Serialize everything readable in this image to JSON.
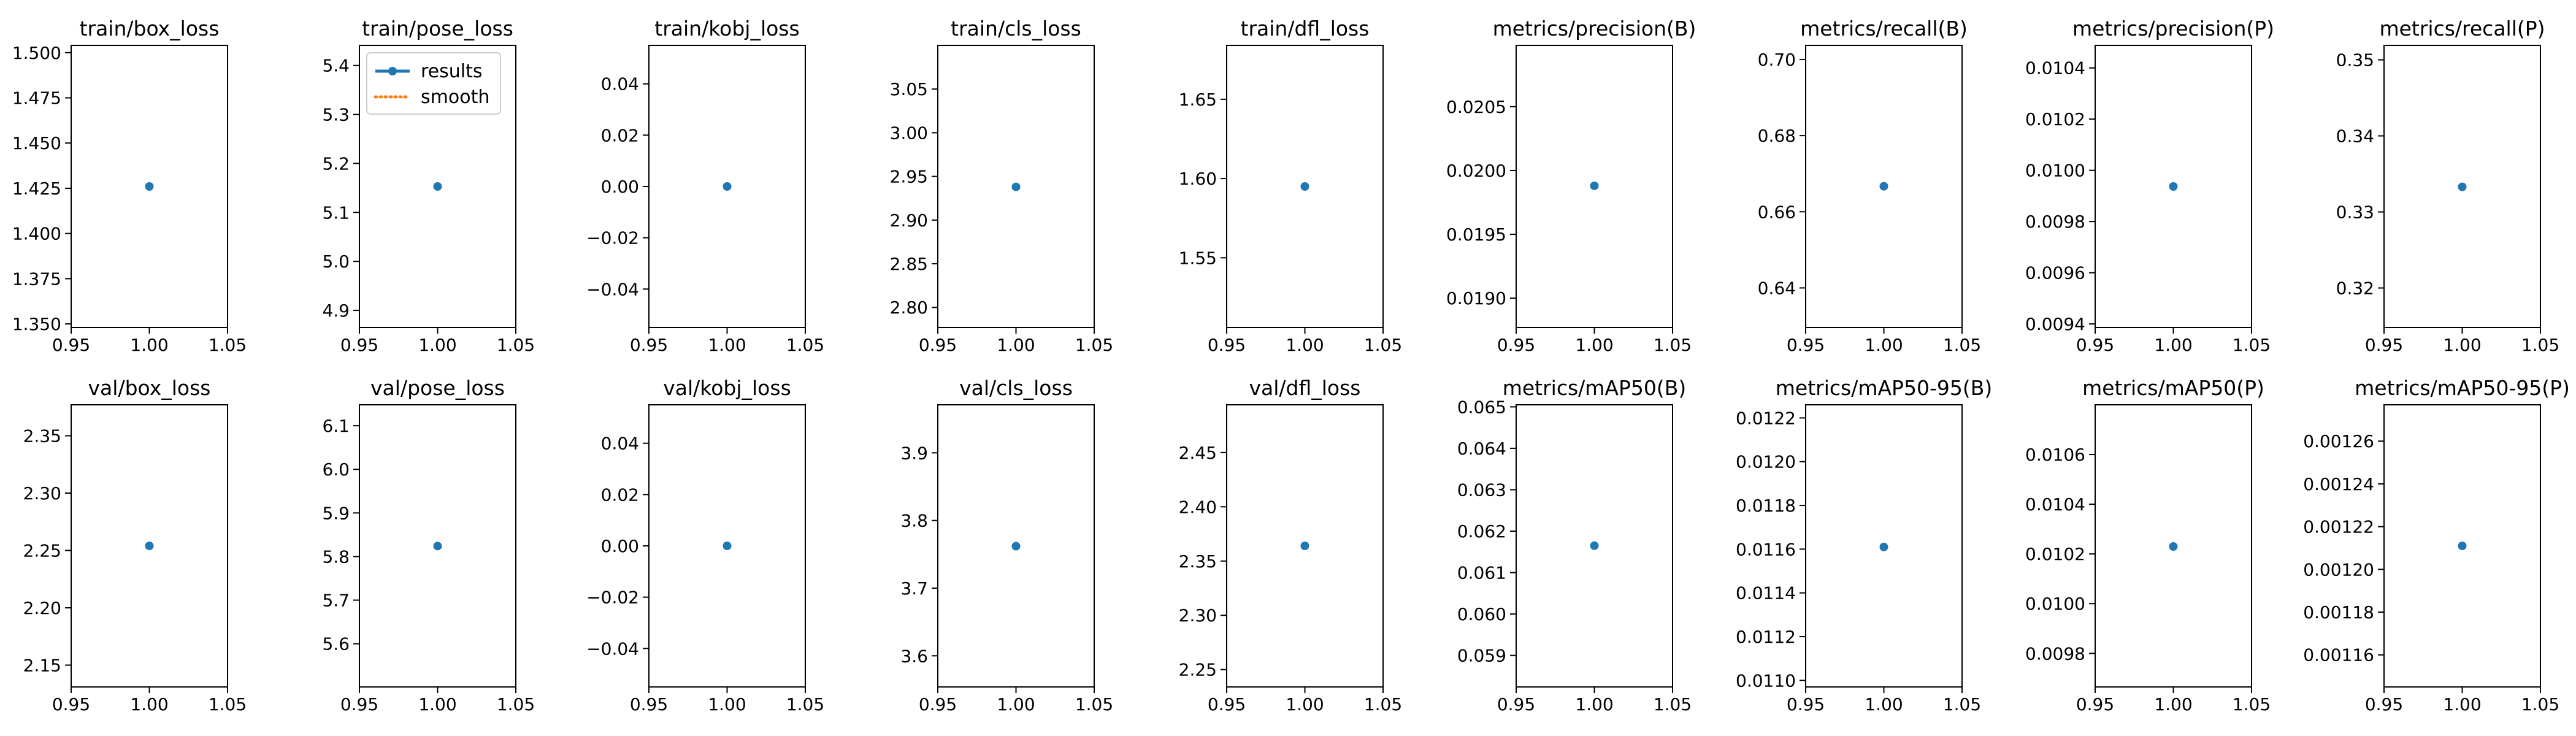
{
  "figure": {
    "legend": [
      "results",
      "smooth"
    ],
    "colors": {
      "results": "#1f77b4",
      "smooth": "#ff7f0e",
      "axes": "#000000",
      "background": "#ffffff"
    }
  },
  "chart_data": [
    {
      "type": "scatter",
      "title": "train/box_loss",
      "x": [
        1.0
      ],
      "y": [
        1.426
      ],
      "xlim": [
        0.95,
        1.05
      ],
      "ylim": [
        1.348,
        1.504
      ],
      "xticks": [
        "0.95",
        "1.00",
        "1.05"
      ],
      "yticks": [
        "1.350",
        "1.375",
        "1.400",
        "1.425",
        "1.450",
        "1.475",
        "1.500"
      ],
      "ytick_values": [
        1.35,
        1.375,
        1.4,
        1.425,
        1.45,
        1.475,
        1.5
      ]
    },
    {
      "type": "scatter",
      "title": "train/pose_loss",
      "x": [
        1.0
      ],
      "y": [
        5.153
      ],
      "xlim": [
        0.95,
        1.05
      ],
      "ylim": [
        4.865,
        5.441
      ],
      "xticks": [
        "0.95",
        "1.00",
        "1.05"
      ],
      "yticks": [
        "4.9",
        "5.0",
        "5.1",
        "5.2",
        "5.3",
        "5.4"
      ],
      "ytick_values": [
        4.9,
        5.0,
        5.1,
        5.2,
        5.3,
        5.4
      ],
      "legend": {
        "position": "upper-left",
        "entries": [
          "results",
          "smooth"
        ]
      }
    },
    {
      "type": "scatter",
      "title": "train/kobj_loss",
      "x": [
        1.0
      ],
      "y": [
        0.0
      ],
      "xlim": [
        0.95,
        1.05
      ],
      "ylim": [
        -0.055,
        0.055
      ],
      "xticks": [
        "0.95",
        "1.00",
        "1.05"
      ],
      "yticks": [
        "−0.04",
        "−0.02",
        "0.00",
        "0.02",
        "0.04"
      ],
      "ytick_values": [
        -0.04,
        -0.02,
        0.0,
        0.02,
        0.04
      ]
    },
    {
      "type": "scatter",
      "title": "train/cls_loss",
      "x": [
        1.0
      ],
      "y": [
        2.938
      ],
      "xlim": [
        0.95,
        1.05
      ],
      "ylim": [
        2.777,
        3.1
      ],
      "xticks": [
        "0.95",
        "1.00",
        "1.05"
      ],
      "yticks": [
        "2.80",
        "2.85",
        "2.90",
        "2.95",
        "3.00",
        "3.05"
      ],
      "ytick_values": [
        2.8,
        2.85,
        2.9,
        2.95,
        3.0,
        3.05
      ]
    },
    {
      "type": "scatter",
      "title": "train/dfl_loss",
      "x": [
        1.0
      ],
      "y": [
        1.595
      ],
      "xlim": [
        0.95,
        1.05
      ],
      "ylim": [
        1.506,
        1.684
      ],
      "xticks": [
        "0.95",
        "1.00",
        "1.05"
      ],
      "yticks": [
        "1.55",
        "1.60",
        "1.65"
      ],
      "ytick_values": [
        1.55,
        1.6,
        1.65
      ]
    },
    {
      "type": "scatter",
      "title": "metrics/precision(B)",
      "x": [
        1.0
      ],
      "y": [
        0.01988
      ],
      "xlim": [
        0.95,
        1.05
      ],
      "ylim": [
        0.01877,
        0.02098
      ],
      "xticks": [
        "0.95",
        "1.00",
        "1.05"
      ],
      "yticks": [
        "0.0190",
        "0.0195",
        "0.0200",
        "0.0205"
      ],
      "ytick_values": [
        0.019,
        0.0195,
        0.02,
        0.0205
      ]
    },
    {
      "type": "scatter",
      "title": "metrics/recall(B)",
      "x": [
        1.0
      ],
      "y": [
        0.6667
      ],
      "xlim": [
        0.95,
        1.05
      ],
      "ylim": [
        0.6296,
        0.7037
      ],
      "xticks": [
        "0.95",
        "1.00",
        "1.05"
      ],
      "yticks": [
        "0.64",
        "0.66",
        "0.68",
        "0.70"
      ],
      "ytick_values": [
        0.64,
        0.66,
        0.68,
        0.7
      ]
    },
    {
      "type": "scatter",
      "title": "metrics/precision(P)",
      "x": [
        1.0
      ],
      "y": [
        0.009937
      ],
      "xlim": [
        0.95,
        1.05
      ],
      "ylim": [
        0.009386,
        0.010488
      ],
      "xticks": [
        "0.95",
        "1.00",
        "1.05"
      ],
      "yticks": [
        "0.0094",
        "0.0096",
        "0.0098",
        "0.0100",
        "0.0102",
        "0.0104"
      ],
      "ytick_values": [
        0.0094,
        0.0096,
        0.0098,
        0.01,
        0.0102,
        0.0104
      ]
    },
    {
      "type": "scatter",
      "title": "metrics/recall(P)",
      "x": [
        1.0
      ],
      "y": [
        0.3333
      ],
      "xlim": [
        0.95,
        1.05
      ],
      "ylim": [
        0.3148,
        0.3519
      ],
      "xticks": [
        "0.95",
        "1.00",
        "1.05"
      ],
      "yticks": [
        "0.32",
        "0.33",
        "0.34",
        "0.35"
      ],
      "ytick_values": [
        0.32,
        0.33,
        0.34,
        0.35
      ]
    },
    {
      "type": "scatter",
      "title": "val/box_loss",
      "x": [
        1.0
      ],
      "y": [
        2.254
      ],
      "xlim": [
        0.95,
        1.05
      ],
      "ylim": [
        2.131,
        2.377
      ],
      "xticks": [
        "0.95",
        "1.00",
        "1.05"
      ],
      "yticks": [
        "2.15",
        "2.20",
        "2.25",
        "2.30",
        "2.35"
      ],
      "ytick_values": [
        2.15,
        2.2,
        2.25,
        2.3,
        2.35
      ]
    },
    {
      "type": "scatter",
      "title": "val/pose_loss",
      "x": [
        1.0
      ],
      "y": [
        5.824
      ],
      "xlim": [
        0.95,
        1.05
      ],
      "ylim": [
        5.501,
        6.148
      ],
      "xticks": [
        "0.95",
        "1.00",
        "1.05"
      ],
      "yticks": [
        "5.6",
        "5.7",
        "5.8",
        "5.9",
        "6.0",
        "6.1"
      ],
      "ytick_values": [
        5.6,
        5.7,
        5.8,
        5.9,
        6.0,
        6.1
      ]
    },
    {
      "type": "scatter",
      "title": "val/kobj_loss",
      "x": [
        1.0
      ],
      "y": [
        0.0
      ],
      "xlim": [
        0.95,
        1.05
      ],
      "ylim": [
        -0.055,
        0.055
      ],
      "xticks": [
        "0.95",
        "1.00",
        "1.05"
      ],
      "yticks": [
        "−0.04",
        "−0.02",
        "0.00",
        "0.02",
        "0.04"
      ],
      "ytick_values": [
        -0.04,
        -0.02,
        0.0,
        0.02,
        0.04
      ]
    },
    {
      "type": "scatter",
      "title": "val/cls_loss",
      "x": [
        1.0
      ],
      "y": [
        3.762
      ],
      "xlim": [
        0.95,
        1.05
      ],
      "ylim": [
        3.554,
        3.971
      ],
      "xticks": [
        "0.95",
        "1.00",
        "1.05"
      ],
      "yticks": [
        "3.6",
        "3.7",
        "3.8",
        "3.9"
      ],
      "ytick_values": [
        3.6,
        3.7,
        3.8,
        3.9
      ]
    },
    {
      "type": "scatter",
      "title": "val/dfl_loss",
      "x": [
        1.0
      ],
      "y": [
        2.364
      ],
      "xlim": [
        0.95,
        1.05
      ],
      "ylim": [
        2.234,
        2.494
      ],
      "xticks": [
        "0.95",
        "1.00",
        "1.05"
      ],
      "yticks": [
        "2.25",
        "2.30",
        "2.35",
        "2.40",
        "2.45"
      ],
      "ytick_values": [
        2.25,
        2.3,
        2.35,
        2.4,
        2.45
      ]
    },
    {
      "type": "scatter",
      "title": "metrics/mAP50(B)",
      "x": [
        1.0
      ],
      "y": [
        0.06165
      ],
      "xlim": [
        0.95,
        1.05
      ],
      "ylim": [
        0.05824,
        0.06505
      ],
      "xticks": [
        "0.95",
        "1.00",
        "1.05"
      ],
      "yticks": [
        "0.059",
        "0.060",
        "0.061",
        "0.062",
        "0.063",
        "0.064",
        "0.065"
      ],
      "ytick_values": [
        0.059,
        0.06,
        0.061,
        0.062,
        0.063,
        0.064,
        0.065
      ]
    },
    {
      "type": "scatter",
      "title": "metrics/mAP50-95(B)",
      "x": [
        1.0
      ],
      "y": [
        0.01161
      ],
      "xlim": [
        0.95,
        1.05
      ],
      "ylim": [
        0.01097,
        0.01226
      ],
      "xticks": [
        "0.95",
        "1.00",
        "1.05"
      ],
      "yticks": [
        "0.0110",
        "0.0112",
        "0.0114",
        "0.0116",
        "0.0118",
        "0.0120",
        "0.0122"
      ],
      "ytick_values": [
        0.011,
        0.0112,
        0.0114,
        0.0116,
        0.0118,
        0.012,
        0.0122
      ]
    },
    {
      "type": "scatter",
      "title": "metrics/mAP50(P)",
      "x": [
        1.0
      ],
      "y": [
        0.01023
      ],
      "xlim": [
        0.95,
        1.05
      ],
      "ylim": [
        0.009665,
        0.0108
      ],
      "xticks": [
        "0.95",
        "1.00",
        "1.05"
      ],
      "yticks": [
        "0.0098",
        "0.0100",
        "0.0102",
        "0.0104",
        "0.0106"
      ],
      "ytick_values": [
        0.0098,
        0.01,
        0.0102,
        0.0104,
        0.0106
      ]
    },
    {
      "type": "scatter",
      "title": "metrics/mAP50-95(P)",
      "x": [
        1.0
      ],
      "y": [
        0.001211
      ],
      "xlim": [
        0.95,
        1.05
      ],
      "ylim": [
        0.001145,
        0.001277
      ],
      "xticks": [
        "0.95",
        "1.00",
        "1.05"
      ],
      "yticks": [
        "0.00116",
        "0.00118",
        "0.00120",
        "0.00122",
        "0.00124",
        "0.00126"
      ],
      "ytick_values": [
        0.00116,
        0.00118,
        0.0012,
        0.00122,
        0.00124,
        0.00126
      ]
    }
  ]
}
